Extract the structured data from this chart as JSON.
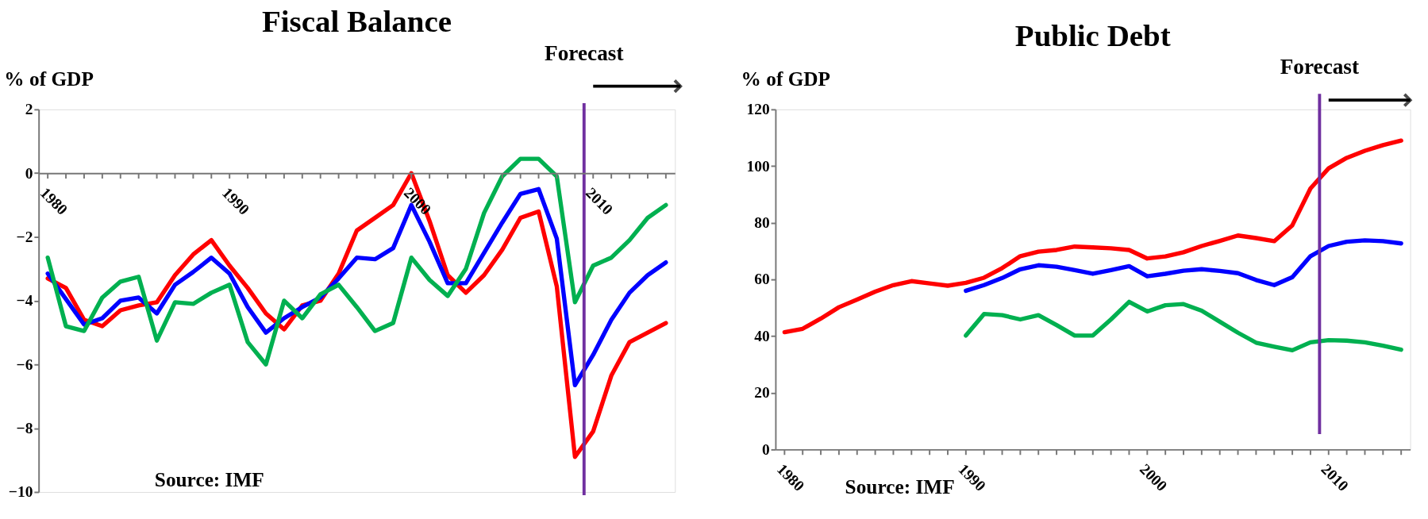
{
  "chart_data": [
    {
      "type": "line",
      "title": "Fiscal Balance",
      "ylabel": "% of GDP",
      "grid": false,
      "legend": false,
      "line_style": "solid",
      "marker": "none",
      "x": [
        1980,
        1981,
        1982,
        1983,
        1984,
        1985,
        1986,
        1987,
        1988,
        1989,
        1990,
        1991,
        1992,
        1993,
        1994,
        1995,
        1996,
        1997,
        1998,
        1999,
        2000,
        2001,
        2002,
        2003,
        2004,
        2005,
        2006,
        2007,
        2008,
        2009,
        2010,
        2011,
        2012,
        2013,
        2014
      ],
      "series": [
        {
          "color": "#ff0000",
          "values": [
            -3.3,
            -3.6,
            -4.6,
            -4.8,
            -4.3,
            -4.15,
            -4.05,
            -3.2,
            -2.55,
            -2.1,
            -2.9,
            -3.6,
            -4.4,
            -4.9,
            -4.15,
            -4.0,
            -3.15,
            -1.8,
            -1.4,
            -1.0,
            0,
            -1.5,
            -3.2,
            -3.75,
            -3.2,
            -2.4,
            -1.4,
            -1.2,
            -3.55,
            -8.9,
            -8.1,
            -6.35,
            -5.3,
            -5.0,
            -4.7
          ]
        },
        {
          "color": "#0000ff",
          "values": [
            -3.15,
            -3.95,
            -4.75,
            -4.55,
            -4.0,
            -3.9,
            -4.4,
            -3.5,
            -3.1,
            -2.65,
            -3.15,
            -4.2,
            -5.0,
            -4.55,
            -4.2,
            -3.9,
            -3.3,
            -2.65,
            -2.7,
            -2.35,
            -1.0,
            -2.15,
            -3.45,
            -3.45,
            -2.5,
            -1.55,
            -0.65,
            -0.5,
            -2.05,
            -6.65,
            -5.7,
            -4.6,
            -3.75,
            -3.2,
            -2.8
          ]
        },
        {
          "color": "#00b050",
          "values": [
            -2.65,
            -4.8,
            -4.95,
            -3.9,
            -3.4,
            -3.25,
            -5.25,
            -4.05,
            -4.1,
            -3.75,
            -3.5,
            -5.3,
            -6.0,
            -4.0,
            -4.55,
            -3.8,
            -3.5,
            -4.2,
            -4.95,
            -4.7,
            -2.65,
            -3.35,
            -3.85,
            -3.0,
            -1.25,
            -0.1,
            0.45,
            0.45,
            -0.1,
            -4.05,
            -2.9,
            -2.65,
            -2.1,
            -1.4,
            -1.0
          ]
        }
      ],
      "xlim": [
        1979.5,
        2014.5
      ],
      "xticks": [
        1980,
        {
          "value": 1981,
          "label": null
        },
        {
          "value": 1982,
          "label": null
        },
        {
          "value": 1983,
          "label": null
        },
        {
          "value": 1984,
          "label": null
        },
        {
          "value": 1985,
          "label": null
        },
        {
          "value": 1986,
          "label": null
        },
        {
          "value": 1987,
          "label": null
        },
        {
          "value": 1988,
          "label": null
        },
        {
          "value": 1989,
          "label": null
        },
        1990,
        {
          "value": 1991,
          "label": null
        },
        {
          "value": 1992,
          "label": null
        },
        {
          "value": 1993,
          "label": null
        },
        {
          "value": 1994,
          "label": null
        },
        {
          "value": 1995,
          "label": null
        },
        {
          "value": 1996,
          "label": null
        },
        {
          "value": 1997,
          "label": null
        },
        {
          "value": 1998,
          "label": null
        },
        {
          "value": 1999,
          "label": null
        },
        2000,
        {
          "value": 2001,
          "label": null
        },
        {
          "value": 2002,
          "label": null
        },
        {
          "value": 2003,
          "label": null
        },
        {
          "value": 2004,
          "label": null
        },
        {
          "value": 2005,
          "label": null
        },
        {
          "value": 2006,
          "label": null
        },
        {
          "value": 2007,
          "label": null
        },
        {
          "value": 2008,
          "label": null
        },
        {
          "value": 2009,
          "label": null
        },
        2010,
        {
          "value": 2011,
          "label": null
        },
        {
          "value": 2012,
          "label": null
        },
        {
          "value": 2013,
          "label": null
        },
        {
          "value": 2014,
          "label": null
        }
      ],
      "ylim": [
        -10,
        2
      ],
      "yticks": [
        -10,
        -8,
        -6,
        -4,
        -2,
        0,
        2
      ],
      "ref_lines": [
        {
          "axis": "x",
          "value": 2009.5,
          "label": "Forecast",
          "color": "#7030a0"
        }
      ],
      "annotations": [
        "Source: IMF"
      ]
    },
    {
      "type": "line",
      "title": "Public Debt",
      "ylabel": "% of GDP",
      "grid": false,
      "legend": false,
      "line_style": "solid",
      "marker": "none",
      "x": [
        1980,
        1981,
        1982,
        1983,
        1984,
        1985,
        1986,
        1987,
        1988,
        1989,
        1990,
        1991,
        1992,
        1993,
        1994,
        1995,
        1996,
        1997,
        1998,
        1999,
        2000,
        2001,
        2002,
        2003,
        2004,
        2005,
        2006,
        2007,
        2008,
        2009,
        2010,
        2011,
        2012,
        2013,
        2014
      ],
      "series": [
        {
          "color": "#ff0000",
          "values": [
            41.4,
            42.6,
            46.2,
            50.2,
            52.9,
            55.7,
            58.0,
            59.4,
            58.6,
            57.8,
            58.8,
            60.6,
            64.0,
            68.2,
            69.8,
            70.4,
            71.6,
            71.3,
            71.0,
            70.4,
            67.4,
            68.1,
            69.6,
            71.8,
            73.6,
            75.5,
            74.6,
            73.5,
            79.1,
            92.1,
            99.2,
            102.9,
            105.4,
            107.4,
            109.0
          ]
        },
        {
          "color": "#0000ff",
          "values": [
            null,
            null,
            null,
            null,
            null,
            null,
            null,
            null,
            null,
            null,
            56.0,
            58.0,
            60.5,
            63.6,
            65.0,
            64.5,
            63.3,
            62.0,
            63.3,
            64.7,
            61.1,
            62.0,
            63.1,
            63.6,
            63.0,
            62.2,
            59.8,
            58.0,
            60.8,
            68.2,
            71.8,
            73.3,
            73.8,
            73.5,
            72.7
          ]
        },
        {
          "color": "#00b050",
          "values": [
            null,
            null,
            null,
            null,
            null,
            null,
            null,
            null,
            null,
            null,
            40.2,
            47.8,
            47.4,
            45.9,
            47.4,
            43.9,
            40.2,
            40.2,
            45.9,
            52.1,
            48.7,
            50.9,
            51.3,
            49.0,
            45.1,
            41.2,
            37.7,
            36.3,
            35.0,
            37.8,
            38.6,
            38.4,
            37.8,
            36.6,
            35.2
          ]
        }
      ],
      "xlim": [
        1979.5,
        2014.5
      ],
      "xticks": [
        1980,
        {
          "value": 1981,
          "label": null
        },
        {
          "value": 1982,
          "label": null
        },
        {
          "value": 1983,
          "label": null
        },
        {
          "value": 1984,
          "label": null
        },
        {
          "value": 1985,
          "label": null
        },
        {
          "value": 1986,
          "label": null
        },
        {
          "value": 1987,
          "label": null
        },
        {
          "value": 1988,
          "label": null
        },
        {
          "value": 1989,
          "label": null
        },
        1990,
        {
          "value": 1991,
          "label": null
        },
        {
          "value": 1992,
          "label": null
        },
        {
          "value": 1993,
          "label": null
        },
        {
          "value": 1994,
          "label": null
        },
        {
          "value": 1995,
          "label": null
        },
        {
          "value": 1996,
          "label": null
        },
        {
          "value": 1997,
          "label": null
        },
        {
          "value": 1998,
          "label": null
        },
        {
          "value": 1999,
          "label": null
        },
        2000,
        {
          "value": 2001,
          "label": null
        },
        {
          "value": 2002,
          "label": null
        },
        {
          "value": 2003,
          "label": null
        },
        {
          "value": 2004,
          "label": null
        },
        {
          "value": 2005,
          "label": null
        },
        {
          "value": 2006,
          "label": null
        },
        {
          "value": 2007,
          "label": null
        },
        {
          "value": 2008,
          "label": null
        },
        {
          "value": 2009,
          "label": null
        },
        2010,
        {
          "value": 2011,
          "label": null
        },
        {
          "value": 2012,
          "label": null
        },
        {
          "value": 2013,
          "label": null
        },
        {
          "value": 2014,
          "label": null
        }
      ],
      "ylim": [
        0,
        120
      ],
      "yticks": [
        0,
        20,
        40,
        60,
        80,
        100,
        120
      ],
      "ref_lines": [
        {
          "axis": "x",
          "value": 2009.5,
          "label": "Forecast",
          "color": "#7030a0"
        }
      ],
      "annotations": [
        "Source: IMF"
      ]
    }
  ]
}
